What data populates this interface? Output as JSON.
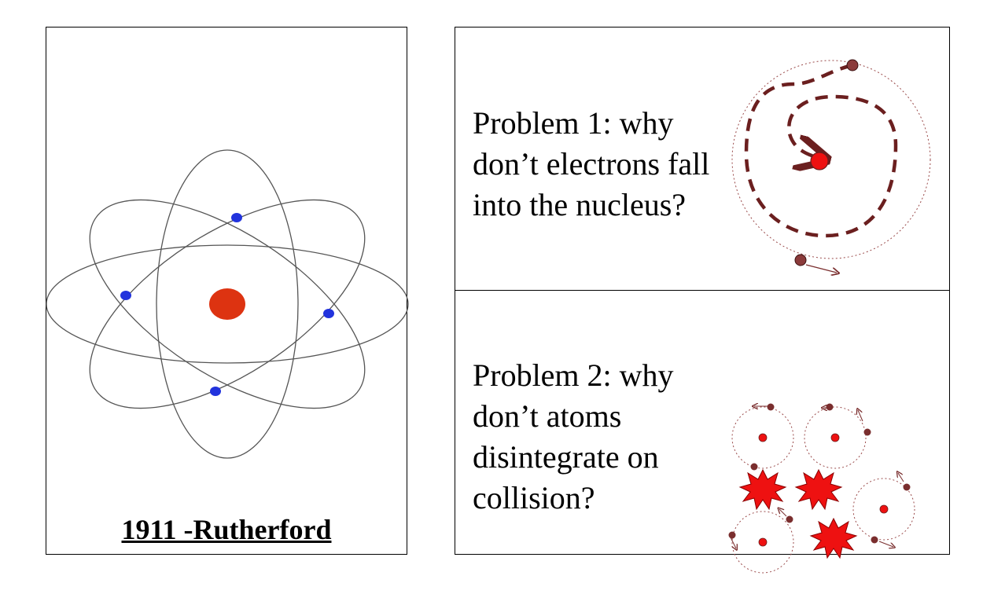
{
  "left_panel": {
    "caption": "1911 -Rutherford",
    "nucleus_color": "#dd3311",
    "electron_color": "#2233dd",
    "orbit_color": "#555555"
  },
  "problem1": {
    "lines": [
      "Problem 1: why",
      "don’t electrons fall",
      "into the nucleus?"
    ],
    "spiral_color": "#6b1f1f",
    "nucleus_color": "#ee1111"
  },
  "problem2": {
    "lines": [
      "Problem 2: why",
      "don’t atoms",
      "disintegrate on",
      "collision?"
    ],
    "electron_color": "#7a2e2e",
    "nucleus_color": "#ee1111",
    "burst_color": "#ee1111"
  }
}
